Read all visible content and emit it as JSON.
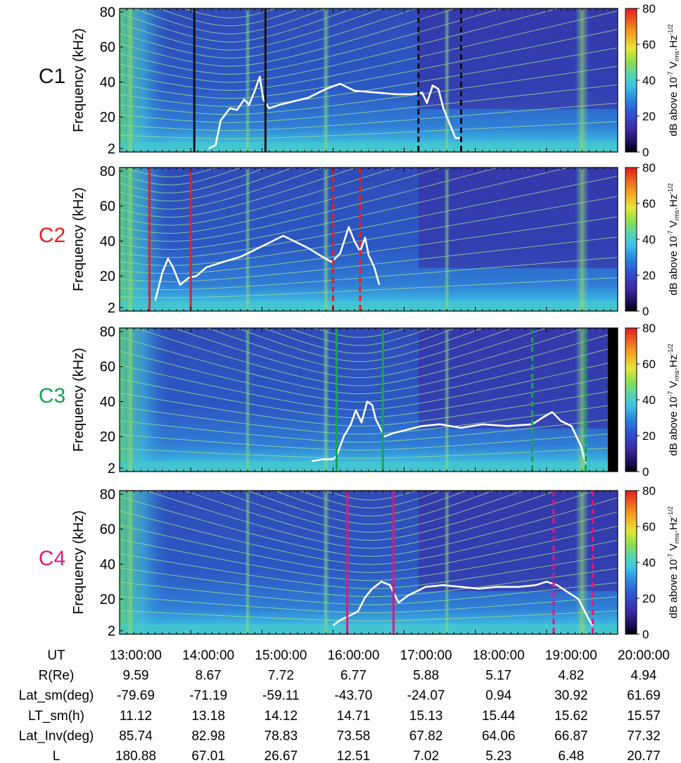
{
  "chart_data": {
    "type": "heatmap",
    "description_source": "Cluster WHISPER multi-spacecraft frequency-time spectrograms",
    "xaxis": {
      "label": "UT",
      "ticks": [
        "13:00:00",
        "14:00:00",
        "15:00:00",
        "16:00:00",
        "17:00:00",
        "18:00:00",
        "19:00:00",
        "20:00:00"
      ],
      "range_hours": [
        13.0,
        20.0
      ]
    },
    "yaxis": {
      "label": "Frequency (kHz)",
      "ticks": [
        2,
        20,
        40,
        60,
        80
      ],
      "range": [
        0,
        82
      ]
    },
    "colorbar": {
      "label": "dB above 10⁻⁷ Vₘₛ.Hz⁻¹ᐟ²",
      "label_parts": {
        "main": "dB above 10",
        "exp1": "-7",
        "v": " V",
        "sub": "rms",
        "hz": ".Hz",
        "exp2": "-1/2"
      },
      "ticks": [
        0,
        20,
        40,
        60,
        80
      ],
      "range": [
        0,
        80
      ]
    },
    "panels": [
      {
        "name": "C1",
        "color": "#111111",
        "plasma_frequency_trace": [
          [
            14.25,
            2
          ],
          [
            14.35,
            4
          ],
          [
            14.42,
            18
          ],
          [
            14.55,
            25
          ],
          [
            14.65,
            24
          ],
          [
            14.75,
            30
          ],
          [
            14.82,
            27
          ],
          [
            14.9,
            35
          ],
          [
            14.97,
            43
          ],
          [
            15.02,
            30
          ],
          [
            15.1,
            25
          ],
          [
            15.25,
            27
          ],
          [
            15.45,
            29
          ],
          [
            15.65,
            31
          ],
          [
            15.9,
            36
          ],
          [
            16.1,
            39
          ],
          [
            16.3,
            35
          ],
          [
            16.6,
            34
          ],
          [
            16.9,
            33
          ],
          [
            17.1,
            33
          ],
          [
            17.25,
            34
          ],
          [
            17.32,
            28
          ],
          [
            17.4,
            38
          ],
          [
            17.48,
            36
          ],
          [
            17.55,
            25
          ],
          [
            17.65,
            15
          ],
          [
            17.72,
            8
          ],
          [
            17.8,
            8
          ]
        ],
        "boundaries_solid": [
          14.05,
          15.05
        ],
        "boundaries_dashed": [
          17.2,
          17.8
        ]
      },
      {
        "name": "C2",
        "color": "#e8201e",
        "plasma_frequency_trace": [
          [
            13.5,
            6
          ],
          [
            13.6,
            22
          ],
          [
            13.68,
            30
          ],
          [
            13.75,
            25
          ],
          [
            13.85,
            15
          ],
          [
            13.97,
            19
          ],
          [
            14.08,
            20
          ],
          [
            14.22,
            25
          ],
          [
            14.45,
            28
          ],
          [
            14.7,
            31
          ],
          [
            14.95,
            36
          ],
          [
            15.15,
            40
          ],
          [
            15.3,
            43
          ],
          [
            15.45,
            40
          ],
          [
            15.65,
            36
          ],
          [
            15.85,
            31
          ],
          [
            15.98,
            28
          ],
          [
            16.1,
            33
          ],
          [
            16.22,
            48
          ],
          [
            16.3,
            40
          ],
          [
            16.38,
            34
          ],
          [
            16.45,
            42
          ],
          [
            16.5,
            32
          ],
          [
            16.58,
            25
          ],
          [
            16.65,
            15
          ]
        ],
        "boundaries_solid": [
          13.42,
          14.0
        ],
        "boundaries_dashed": [
          16.0,
          16.38
        ]
      },
      {
        "name": "C3",
        "color": "#13a651",
        "plasma_frequency_trace": [
          [
            15.7,
            6
          ],
          [
            15.85,
            7
          ],
          [
            16.0,
            7
          ],
          [
            16.05,
            9
          ],
          [
            16.15,
            20
          ],
          [
            16.25,
            27
          ],
          [
            16.32,
            35
          ],
          [
            16.4,
            28
          ],
          [
            16.48,
            40
          ],
          [
            16.55,
            38
          ],
          [
            16.6,
            30
          ],
          [
            16.72,
            20
          ],
          [
            16.85,
            22
          ],
          [
            17.05,
            24
          ],
          [
            17.25,
            26
          ],
          [
            17.5,
            27
          ],
          [
            17.8,
            25
          ],
          [
            18.1,
            27
          ],
          [
            18.45,
            26
          ],
          [
            18.8,
            27
          ],
          [
            18.95,
            31
          ],
          [
            19.08,
            34
          ],
          [
            19.2,
            29
          ],
          [
            19.35,
            26
          ],
          [
            19.48,
            15
          ],
          [
            19.55,
            5
          ]
        ],
        "boundaries_solid": [
          16.05,
          16.7
        ],
        "boundaries_dashed": [
          18.8,
          19.55
        ]
      },
      {
        "name": "C4",
        "color": "#e0187d",
        "plasma_frequency_trace": [
          [
            16.0,
            5
          ],
          [
            16.1,
            8
          ],
          [
            16.2,
            10
          ],
          [
            16.35,
            13
          ],
          [
            16.45,
            21
          ],
          [
            16.55,
            26
          ],
          [
            16.68,
            30
          ],
          [
            16.8,
            28
          ],
          [
            16.92,
            18
          ],
          [
            17.05,
            22
          ],
          [
            17.3,
            27
          ],
          [
            17.55,
            28
          ],
          [
            17.8,
            27
          ],
          [
            18.05,
            26
          ],
          [
            18.3,
            27
          ],
          [
            18.6,
            27
          ],
          [
            18.85,
            28
          ],
          [
            19.0,
            30
          ],
          [
            19.15,
            28
          ],
          [
            19.3,
            24
          ],
          [
            19.45,
            20
          ],
          [
            19.6,
            8
          ],
          [
            19.65,
            5
          ]
        ],
        "boundaries_solid": [
          16.2,
          16.85
        ],
        "boundaries_dashed": [
          19.1,
          19.65
        ]
      }
    ],
    "ephemeris_table": {
      "columns": [
        "13:00:00",
        "14:00:00",
        "15:00:00",
        "16:00:00",
        "17:00:00",
        "18:00:00",
        "19:00:00",
        "20:00:00"
      ],
      "rows": [
        {
          "label": "UT",
          "values": [
            "13:00:00",
            "14:00:00",
            "15:00:00",
            "16:00:00",
            "17:00:00",
            "18:00:00",
            "19:00:00",
            "20:00:00"
          ]
        },
        {
          "label": "R(Re)",
          "values": [
            "9.59",
            "8.67",
            "7.72",
            "6.77",
            "5.88",
            "5.17",
            "4.82",
            "4.94"
          ]
        },
        {
          "label": "Lat_sm(deg)",
          "values": [
            "-79.69",
            "-71.19",
            "-59.11",
            "-43.70",
            "-24.07",
            "0.94",
            "30.92",
            "61.69"
          ]
        },
        {
          "label": "LT_sm(h)",
          "values": [
            "11.12",
            "13.18",
            "14.12",
            "14.71",
            "15.13",
            "15.44",
            "15.62",
            "15.57"
          ]
        },
        {
          "label": "Lat_Inv(deg)",
          "values": [
            "85.74",
            "82.98",
            "78.83",
            "73.58",
            "67.82",
            "64.06",
            "66.87",
            "77.32"
          ]
        },
        {
          "label": "L",
          "values": [
            "180.88",
            "67.01",
            "26.67",
            "12.51",
            "7.02",
            "5.23",
            "6.48",
            "20.77"
          ]
        }
      ]
    }
  }
}
